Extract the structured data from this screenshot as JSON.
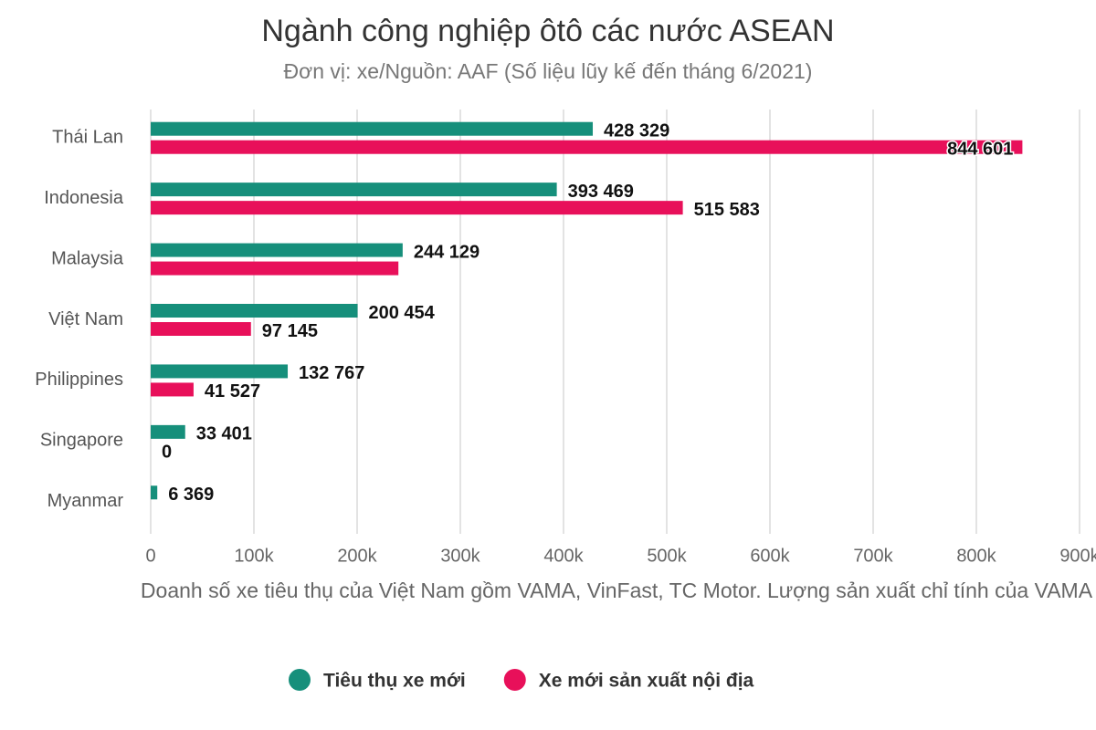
{
  "chart_data": {
    "type": "hbar",
    "title": "Ngành công nghiệp ôtô các nước ASEAN",
    "subtitle": "Đơn vị: xe/Nguồn: AAF (Số liệu lũy kế đến tháng 6/2021)",
    "x_label": "Doanh số xe tiêu thụ của Việt Nam gồm VAMA, VinFast, TC Motor. Lượng sản xuất chỉ tính của VAMA",
    "categories": [
      "Thái Lan",
      "Indonesia",
      "Malaysia",
      "Việt Nam",
      "Philippines",
      "Singapore",
      "Myanmar"
    ],
    "series": [
      {
        "name": "Tiêu thụ xe mới",
        "color": "#168f7b",
        "values": [
          428329,
          393469,
          244129,
          200454,
          132767,
          33401,
          6369
        ],
        "value_labels": [
          "428 329",
          "393 469",
          "244 129",
          "200 454",
          "132 767",
          "33 401",
          "6 369"
        ]
      },
      {
        "name": "Xe mới sản xuất nội địa",
        "color": "#e8105a",
        "values": [
          844601,
          515583,
          240000,
          97145,
          41527,
          0,
          null
        ],
        "value_labels": [
          "844 601",
          "515 583",
          null,
          "97 145",
          "41 527",
          "0",
          null
        ]
      }
    ],
    "xlim": [
      0,
      900000
    ],
    "xticks": [
      0,
      {
        "value": 100000,
        "label": "100k"
      },
      {
        "value": 200000,
        "label": "200k"
      },
      {
        "value": 300000,
        "label": "300k"
      },
      {
        "value": 400000,
        "label": "400k"
      },
      {
        "value": 500000,
        "label": "500k"
      },
      {
        "value": 600000,
        "label": "600k"
      },
      {
        "value": 700000,
        "label": "700k"
      },
      {
        "value": 800000,
        "label": "800k"
      },
      {
        "value": 900000,
        "label": "900k"
      }
    ],
    "grid": true,
    "legend": "bottom"
  }
}
